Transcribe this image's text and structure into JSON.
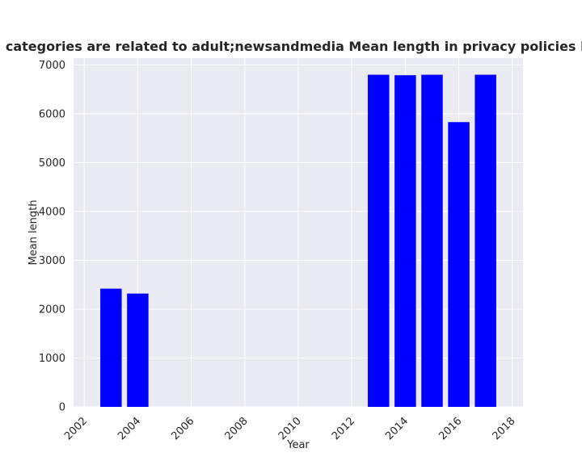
{
  "chart_data": {
    "type": "bar",
    "title": "when categories are related to adult;newsandmedia Mean length in privacy policies by Year",
    "xlabel": "Year",
    "ylabel": "Mean length",
    "x": [
      2003,
      2004,
      2013,
      2014,
      2015,
      2016,
      2017
    ],
    "values": [
      2420,
      2320,
      6800,
      6790,
      6800,
      5830,
      6800
    ],
    "bar_color": "#0000ff",
    "xlim": [
      2001.6,
      2018.4
    ],
    "ylim": [
      0,
      7140
    ],
    "xticks": [
      2002,
      2004,
      2006,
      2008,
      2010,
      2012,
      2014,
      2016,
      2018
    ],
    "yticks": [
      0,
      1000,
      2000,
      3000,
      4000,
      5000,
      6000,
      7000
    ],
    "grid": true,
    "background_color": "#eaeaf2",
    "grid_color": "#ffffff"
  }
}
